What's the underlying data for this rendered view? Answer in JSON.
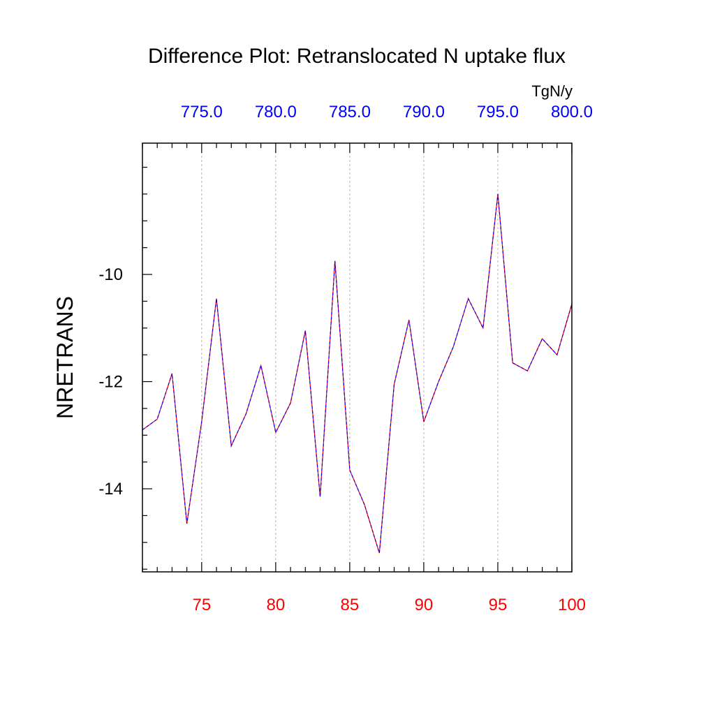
{
  "chart_data": {
    "type": "line",
    "title": "Difference Plot: Retranslocated N uptake flux",
    "units": "TgN/y",
    "ylabel": "NRETRANS",
    "xlabel": "",
    "xlim": [
      71,
      100
    ],
    "ylim": [
      -15.55,
      -7.55
    ],
    "grid": "vertical dashed at major bottom ticks",
    "x_bottom": {
      "ticks": [
        75,
        80,
        85,
        90,
        95,
        100
      ],
      "labels": [
        "75",
        "80",
        "85",
        "90",
        "95",
        "100"
      ],
      "color": "#ff0000"
    },
    "x_top": {
      "ticks": [
        75,
        80,
        85,
        90,
        95,
        100
      ],
      "labels": [
        "775.0",
        "780.0",
        "785.0",
        "790.0",
        "795.0",
        "800.0"
      ],
      "color": "#0000ff"
    },
    "y_axis": {
      "ticks": [
        -14,
        -12,
        -10
      ],
      "labels": [
        "-14",
        "-12",
        "-10"
      ]
    },
    "series": [
      {
        "color": "#ff0000",
        "style": "solid",
        "x": [
          71,
          72,
          73,
          74,
          75,
          76,
          77,
          78,
          79,
          80,
          81,
          82,
          83,
          84,
          85,
          86,
          87,
          88,
          89,
          90,
          91,
          92,
          93,
          94,
          95,
          96,
          97,
          98,
          99,
          100
        ],
        "values": [
          -12.9,
          -12.7,
          -11.85,
          -14.65,
          -12.75,
          -10.45,
          -13.2,
          -12.6,
          -11.7,
          -12.95,
          -12.4,
          -11.05,
          -14.15,
          -9.75,
          -13.65,
          -14.3,
          -15.2,
          -12.05,
          -10.85,
          -12.75,
          -12.0,
          -11.35,
          -10.45,
          -11.0,
          -8.5,
          -11.65,
          -11.8,
          -11.2,
          -11.5,
          -10.55
        ]
      },
      {
        "color": "#0000ff",
        "style": "dashed",
        "x": [
          71,
          72,
          73,
          74,
          75,
          76,
          77,
          78,
          79,
          80,
          81,
          82,
          83,
          84,
          85,
          86,
          87,
          88,
          89,
          90,
          91,
          92,
          93,
          94,
          95,
          96,
          97,
          98,
          99,
          100
        ],
        "values": [
          -12.9,
          -12.7,
          -11.85,
          -14.65,
          -12.75,
          -10.45,
          -13.2,
          -12.6,
          -11.7,
          -12.95,
          -12.4,
          -11.05,
          -14.15,
          -9.75,
          -13.65,
          -14.3,
          -15.2,
          -12.05,
          -10.85,
          -12.75,
          -12.0,
          -11.35,
          -10.45,
          -11.0,
          -8.5,
          -11.65,
          -11.8,
          -11.2,
          -11.5,
          -10.55
        ]
      }
    ]
  }
}
